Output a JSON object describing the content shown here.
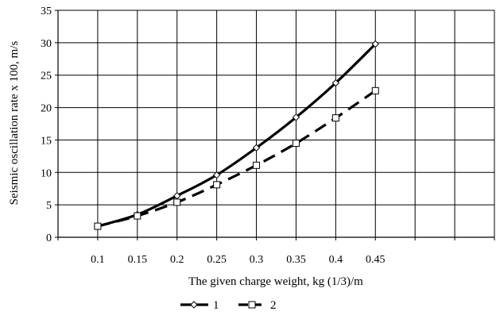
{
  "chart_data": {
    "type": "line",
    "title": "",
    "xlabel": "The given charge weight, kg (1/3)/m",
    "ylabel": "Seismic oscillation rate x 100, m/s",
    "x_ticks": [
      "0.1",
      "0.15",
      "0.2",
      "0.25",
      "0.3",
      "0.35",
      "0.4",
      "0.45"
    ],
    "y_ticks": [
      "0",
      "5",
      "10",
      "15",
      "20",
      "25",
      "30",
      "35"
    ],
    "ylim": [
      0,
      35
    ],
    "grid": true,
    "legend_position": "bottom",
    "series": [
      {
        "name": "1",
        "style": "solid",
        "marker": "diamond",
        "color": "#000000",
        "x": [
          0.1,
          0.15,
          0.2,
          0.25,
          0.3,
          0.35,
          0.4,
          0.45
        ],
        "values": [
          1.7,
          3.5,
          6.4,
          9.6,
          13.8,
          18.5,
          23.8,
          29.8
        ]
      },
      {
        "name": "2",
        "style": "dashed",
        "marker": "square",
        "color": "#000000",
        "x": [
          0.1,
          0.15,
          0.2,
          0.25,
          0.3,
          0.35,
          0.4,
          0.45
        ],
        "values": [
          1.7,
          3.3,
          5.4,
          8.1,
          11.1,
          14.5,
          18.4,
          22.6
        ]
      }
    ]
  }
}
